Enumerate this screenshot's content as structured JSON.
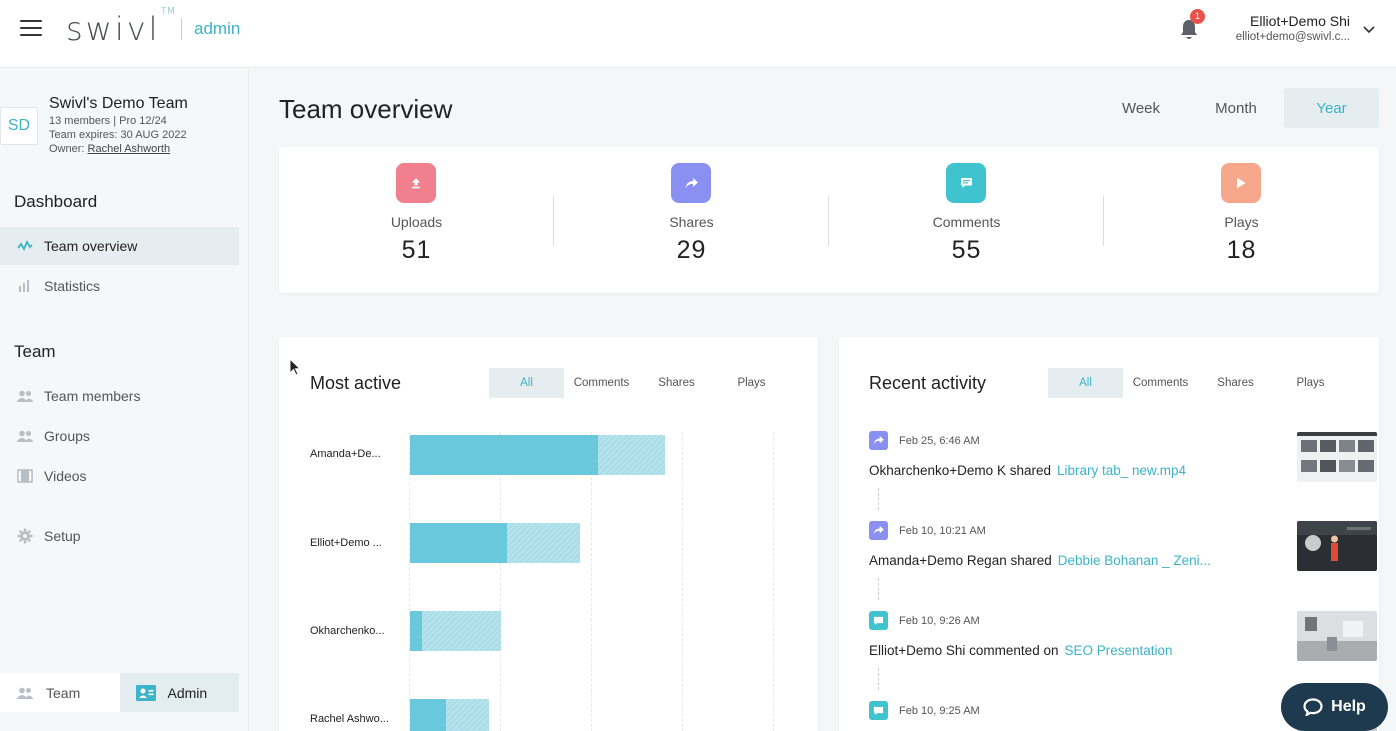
{
  "header": {
    "logo_text": "swivl",
    "logo_tm": "TM",
    "logo_admin": "admin",
    "notifications_count": "1",
    "user_name": "Elliot+Demo Shi",
    "user_email": "elliot+demo@swivl.c..."
  },
  "team": {
    "avatar_initials": "SD",
    "name": "Swivl's Demo Team",
    "meta_members": "13 members | Pro 12/24",
    "meta_expires": "Team expires: 30 AUG 2022",
    "owner_label": "Owner:",
    "owner_name": "Rachel Ashworth"
  },
  "sidebar": {
    "dashboard_heading": "Dashboard",
    "team_heading": "Team",
    "items": [
      {
        "label": "Team overview",
        "icon": "activity-icon"
      },
      {
        "label": "Statistics",
        "icon": "bar-chart-icon"
      },
      {
        "label": "Team members",
        "icon": "people-icon"
      },
      {
        "label": "Groups",
        "icon": "group-icon"
      },
      {
        "label": "Videos",
        "icon": "film-icon"
      },
      {
        "label": "Setup",
        "icon": "gear-icon"
      }
    ],
    "bottom_tabs": [
      {
        "label": "Team"
      },
      {
        "label": "Admin"
      }
    ]
  },
  "main": {
    "title": "Team overview",
    "periods": [
      "Week",
      "Month",
      "Year"
    ],
    "active_period": "Year",
    "stats": [
      {
        "label": "Uploads",
        "value": "51",
        "color": "#f27f8e",
        "icon": "upload-icon"
      },
      {
        "label": "Shares",
        "value": "29",
        "color": "#8a8ff2",
        "icon": "share-icon"
      },
      {
        "label": "Comments",
        "value": "55",
        "color": "#3fc3cf",
        "icon": "comment-icon"
      },
      {
        "label": "Plays",
        "value": "18",
        "color": "#f7a88c",
        "icon": "play-icon"
      }
    ]
  },
  "most_active": {
    "title": "Most active",
    "filters": [
      "All",
      "Comments",
      "Shares",
      "Plays"
    ],
    "rows": [
      {
        "name": "Amanda+De...",
        "solid": 188,
        "light": 67
      },
      {
        "name": "Elliot+Demo ...",
        "solid": 97,
        "light": 73
      },
      {
        "name": "Okharchenko...",
        "solid": 12,
        "light": 79
      },
      {
        "name": "Rachel Ashwo...",
        "solid": 36,
        "light": 43
      }
    ]
  },
  "recent_activity": {
    "title": "Recent activity",
    "filters": [
      "All",
      "Comments",
      "Shares",
      "Plays"
    ],
    "items": [
      {
        "type": "share",
        "time": "Feb 25, 6:46 AM",
        "text": "Okharchenko+Demo K shared",
        "link": "Library tab_ new.mp4"
      },
      {
        "type": "share",
        "time": "Feb 10, 10:21 AM",
        "text": "Amanda+Demo Regan shared",
        "link": "Debbie Bohanan _ Zeni..."
      },
      {
        "type": "comment",
        "time": "Feb 10, 9:26 AM",
        "text": "Elliot+Demo Shi commented on",
        "link": "SEO Presentation"
      },
      {
        "type": "comment",
        "time": "Feb 10, 9:25 AM",
        "text": "",
        "link": ""
      }
    ]
  },
  "help_label": "Help",
  "colors": {
    "accent": "#3bb3c8",
    "share": "#8a8ff2",
    "comment": "#3fc3cf",
    "help_bg": "#1e3a4f"
  }
}
